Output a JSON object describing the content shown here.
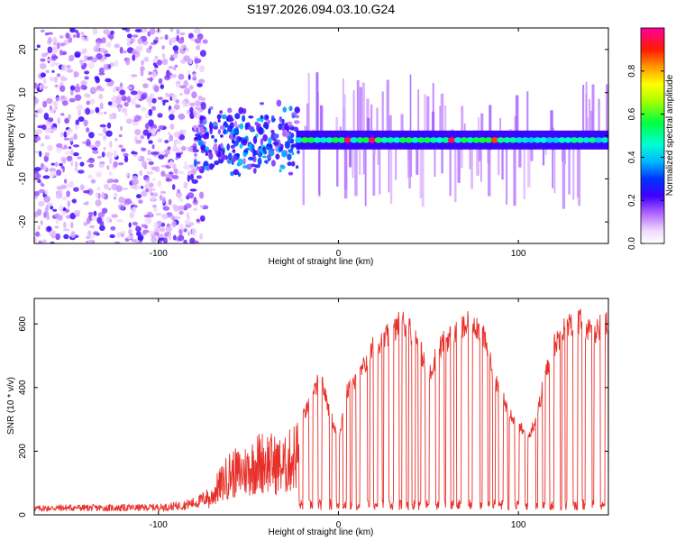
{
  "title": "S197.2026.094.03.10.G24",
  "chart_data": [
    {
      "type": "heatmap",
      "name": "spectrogram",
      "xlabel": "Height of straight line (km)",
      "ylabel": "Frequency (Hz)",
      "xlim": [
        -169,
        150
      ],
      "ylim": [
        -25,
        25
      ],
      "xticks": [
        -100,
        0,
        100
      ],
      "xtick_labels": [
        "-100",
        "0",
        "100"
      ],
      "yticks": [
        -20,
        -10,
        0,
        10,
        20
      ],
      "ytick_labels": [
        "-20",
        "-10",
        "0",
        "10",
        "20"
      ],
      "grid": false,
      "description_regions": {
        "noise_region_km": [
          -169,
          -80
        ],
        "transition_region_km": [
          -80,
          -22
        ],
        "signal_line_region_km": [
          -22,
          150
        ],
        "signal_frequency_hz": -1
      }
    },
    {
      "type": "colorbar",
      "name": "colorbar",
      "label": "Normalized spectral amplitude",
      "range": [
        0,
        1
      ],
      "ticks": [
        0.0,
        0.2,
        0.4,
        0.6,
        0.8
      ],
      "tick_labels": [
        "0.0",
        "0.2",
        "0.4",
        "0.6",
        "0.8"
      ]
    },
    {
      "type": "line",
      "name": "snr",
      "xlabel": "Height of straight line (km)",
      "ylabel": "SNR (10 * v/v)",
      "xlim": [
        -169,
        150
      ],
      "ylim": [
        0,
        680
      ],
      "xticks": [
        -100,
        0,
        100
      ],
      "xtick_labels": [
        "-100",
        "0",
        "100"
      ],
      "yticks": [
        0,
        200,
        400,
        600
      ],
      "ytick_labels": [
        "0",
        "200",
        "400",
        "600"
      ],
      "grid": false,
      "series_color": "#e8302a",
      "envelope_x": [
        -169,
        -150,
        -130,
        -110,
        -95,
        -85,
        -78,
        -72,
        -68,
        -65,
        -60,
        -55,
        -50,
        -45,
        -40,
        -35,
        -30,
        -25,
        -20,
        -15,
        -10,
        -5,
        0,
        5,
        10,
        15,
        20,
        25,
        30,
        35,
        40,
        45,
        50,
        55,
        60,
        65,
        70,
        75,
        80,
        85,
        90,
        95,
        100,
        105,
        110,
        115,
        120,
        125,
        130,
        135,
        140,
        145,
        150
      ],
      "envelope_y": [
        22,
        25,
        24,
        25,
        27,
        35,
        45,
        65,
        120,
        150,
        200,
        200,
        220,
        250,
        260,
        240,
        230,
        280,
        320,
        380,
        460,
        340,
        250,
        410,
        440,
        500,
        560,
        580,
        600,
        640,
        610,
        560,
        450,
        540,
        580,
        600,
        620,
        640,
        600,
        490,
        400,
        340,
        300,
        250,
        320,
        460,
        560,
        610,
        630,
        640,
        600,
        620,
        630
      ],
      "dropout_start_km": -22,
      "dropout_level": 30
    }
  ]
}
